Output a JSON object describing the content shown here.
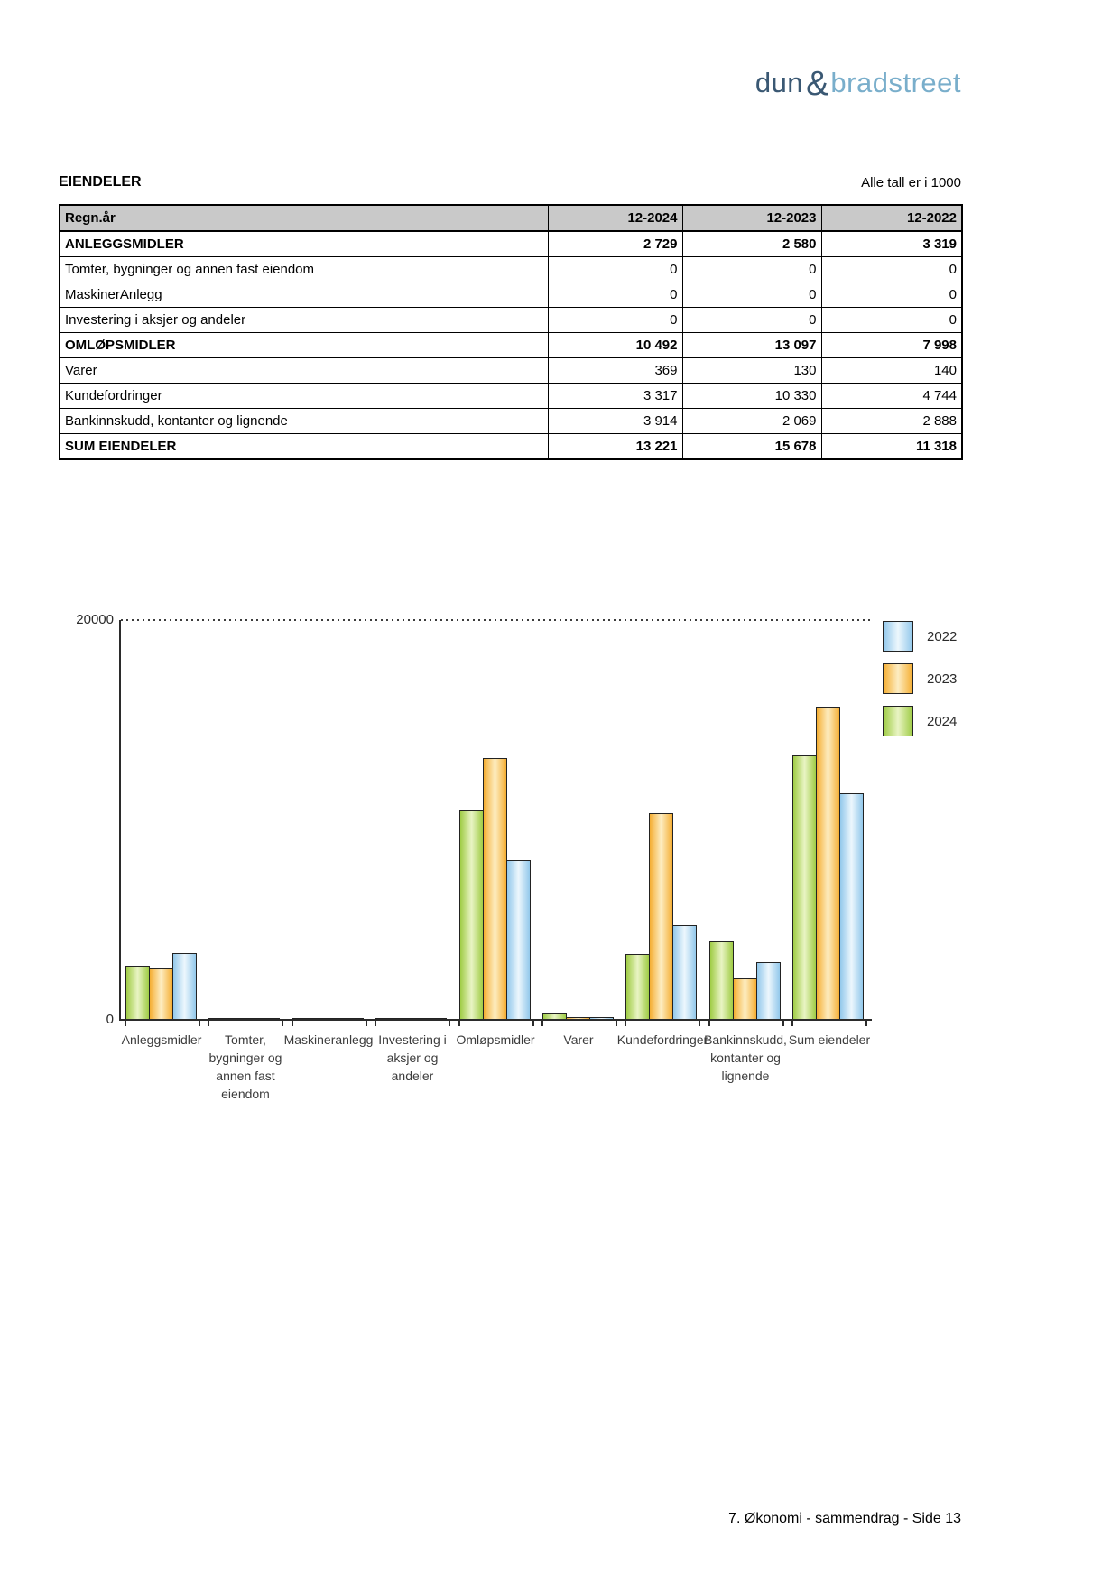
{
  "logo": {
    "part1": "dun",
    "amp": "&",
    "part2": "bradstreet",
    "color_dark": "#3a5873",
    "color_light": "#79aecb"
  },
  "header": {
    "title": "EIENDELER",
    "note": "Alle tall er i 1000"
  },
  "table": {
    "columns": [
      "Regn.år",
      "12-2024",
      "12-2023",
      "12-2022"
    ],
    "rows": [
      {
        "label": "ANLEGGSMIDLER",
        "bold": true,
        "values": [
          "2 729",
          "2 580",
          "3 319"
        ]
      },
      {
        "label": "Tomter, bygninger og annen fast eiendom",
        "bold": false,
        "values": [
          "0",
          "0",
          "0"
        ]
      },
      {
        "label": "MaskinerAnlegg",
        "bold": false,
        "values": [
          "0",
          "0",
          "0"
        ]
      },
      {
        "label": "Investering i aksjer og andeler",
        "bold": false,
        "values": [
          "0",
          "0",
          "0"
        ]
      },
      {
        "label": "OMLØPSMIDLER",
        "bold": true,
        "values": [
          "10 492",
          "13 097",
          "7 998"
        ]
      },
      {
        "label": "Varer",
        "bold": false,
        "values": [
          "369",
          "130",
          "140"
        ]
      },
      {
        "label": "Kundefordringer",
        "bold": false,
        "values": [
          "3 317",
          "10 330",
          "4 744"
        ]
      },
      {
        "label": "Bankinnskudd, kontanter og lignende",
        "bold": false,
        "values": [
          "3 914",
          "2 069",
          "2 888"
        ]
      },
      {
        "label": "SUM EIENDELER",
        "bold": true,
        "values": [
          "13 221",
          "15 678",
          "11 318"
        ]
      }
    ]
  },
  "chart_data": {
    "type": "bar",
    "categories": [
      "Anleggsmidler",
      "Tomter, bygninger og annen fast eiendom",
      "Maskineranlegg",
      "Investering i aksjer og andeler",
      "Omløpsmidler",
      "Varer",
      "Kundefordringer",
      "Bankinnskudd, kontanter og lignende",
      "Sum eiendeler"
    ],
    "category_label_lines": [
      [
        "Anleggsmidler"
      ],
      [
        "Tomter,",
        "bygninger og",
        "annen fast",
        "eiendom"
      ],
      [
        "Maskineranlegg"
      ],
      [
        "Investering i",
        "aksjer og",
        "andeler"
      ],
      [
        "Omløpsmidler"
      ],
      [
        "Varer"
      ],
      [
        "Kundefordringer"
      ],
      [
        "Bankinnskudd,",
        "kontanter og",
        "lignende"
      ],
      [
        "Sum eiendeler"
      ]
    ],
    "series": [
      {
        "name": "2024",
        "color_edge": "#9fcc45",
        "color_center": "#e9f4c4",
        "values": [
          2729,
          0,
          0,
          0,
          10492,
          369,
          3317,
          3914,
          13221
        ]
      },
      {
        "name": "2023",
        "color_edge": "#f5ae33",
        "color_center": "#fdedc2",
        "values": [
          2580,
          0,
          0,
          0,
          13097,
          130,
          10330,
          2069,
          15678
        ]
      },
      {
        "name": "2022",
        "color_edge": "#92c8eb",
        "color_center": "#edf7fd",
        "values": [
          3319,
          0,
          0,
          0,
          7998,
          140,
          4744,
          2888,
          11318
        ]
      }
    ],
    "legend_order": [
      "2022",
      "2023",
      "2024"
    ],
    "legend_position": "top-right",
    "ylim": [
      0,
      20000
    ],
    "yticks": {
      "top": "20000",
      "bottom": "0"
    },
    "grid": "dotted-top-line-only",
    "title": "",
    "xlabel": "",
    "ylabel": ""
  },
  "footer": {
    "text": "7. Økonomi - sammendrag - Side 13"
  }
}
